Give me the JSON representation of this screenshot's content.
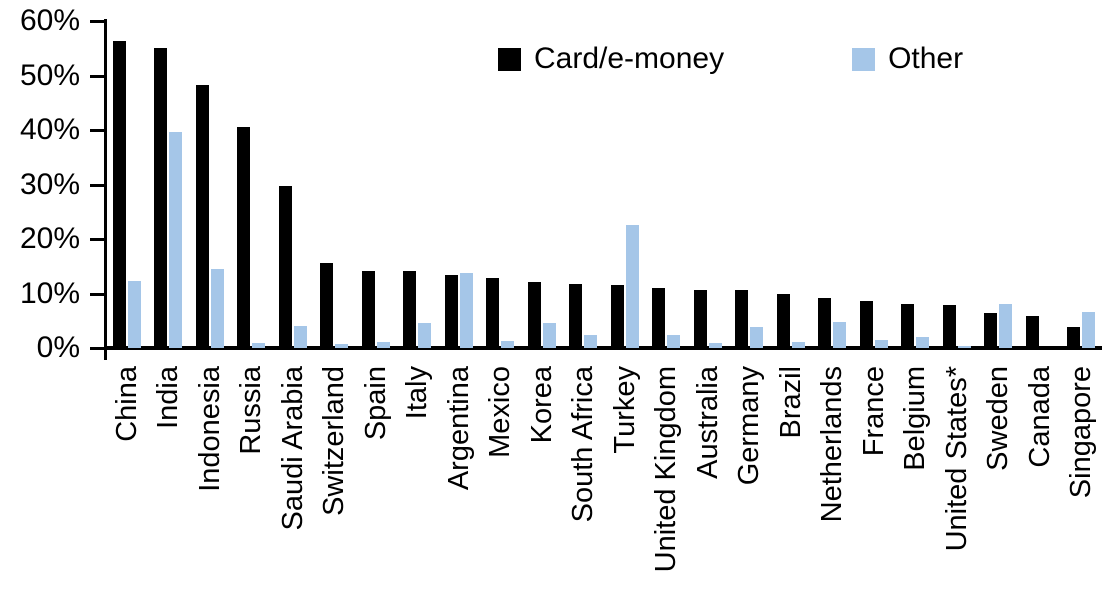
{
  "chart_data": {
    "type": "bar",
    "title": "",
    "xlabel": "",
    "ylabel": "",
    "ylim": [
      0,
      60
    ],
    "ytick_step": 10,
    "ytick_labels": [
      "0%",
      "10%",
      "20%",
      "30%",
      "40%",
      "50%",
      "60%"
    ],
    "grid": false,
    "legend_position": "top-center",
    "x_label_rotation": -90,
    "categories": [
      "China",
      "India",
      "Indonesia",
      "Russia",
      "Saudi Arabia",
      "Switzerland",
      "Spain",
      "Italy",
      "Argentina",
      "Mexico",
      "Korea",
      "South Africa",
      "Turkey",
      "United Kingdom",
      "Australia",
      "Germany",
      "Brazil",
      "Netherlands",
      "France",
      "Belgium",
      "United States*",
      "Sweden",
      "Canada",
      "Singapore"
    ],
    "series": [
      {
        "name": "Card/e-money",
        "color": "#000000",
        "values": [
          56.3,
          55.0,
          48.2,
          40.5,
          29.8,
          15.6,
          14.2,
          14.1,
          13.4,
          12.9,
          12.2,
          11.7,
          11.6,
          11.0,
          10.7,
          10.6,
          9.9,
          9.2,
          8.6,
          8.1,
          7.9,
          6.5,
          5.9,
          3.9
        ]
      },
      {
        "name": "Other",
        "color": "#A5C6E8",
        "values": [
          12.3,
          39.7,
          14.5,
          1.0,
          4.0,
          0.8,
          1.1,
          4.6,
          13.8,
          1.3,
          4.6,
          2.3,
          22.6,
          2.3,
          1.0,
          3.9,
          1.1,
          4.8,
          1.4,
          2.0,
          0.4,
          8.1,
          0.0,
          6.6
        ]
      }
    ]
  }
}
